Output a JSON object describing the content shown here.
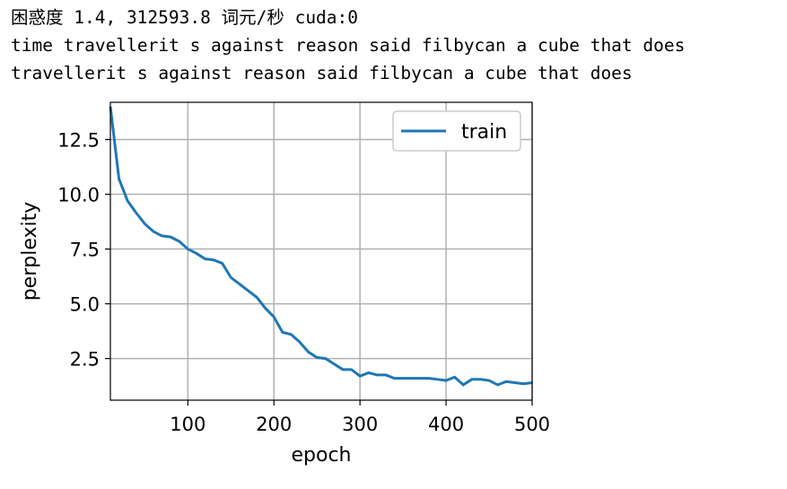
{
  "output": {
    "line1": "困惑度 1.4, 312593.8 词元/秒 cuda:0",
    "line2": "time travellerit s against reason said filbycan a cube that does",
    "line3": "travellerit s against reason said filbycan a cube that does"
  },
  "chart_data": {
    "type": "line",
    "xlabel": "epoch",
    "ylabel": "perplexity",
    "xlim": [
      10,
      500
    ],
    "ylim": [
      0.6,
      14.2
    ],
    "xticks": [
      100,
      200,
      300,
      400,
      500
    ],
    "yticks": [
      2.5,
      5.0,
      7.5,
      10.0,
      12.5
    ],
    "grid": true,
    "legend_position": "top-right",
    "series": [
      {
        "name": "train",
        "color": "#1f77b4",
        "x": [
          10,
          20,
          30,
          40,
          50,
          60,
          70,
          80,
          90,
          100,
          110,
          120,
          130,
          140,
          150,
          160,
          170,
          180,
          190,
          200,
          210,
          220,
          230,
          240,
          250,
          260,
          270,
          280,
          290,
          300,
          310,
          320,
          330,
          340,
          350,
          360,
          370,
          380,
          390,
          400,
          410,
          420,
          430,
          440,
          450,
          460,
          470,
          480,
          490,
          500
        ],
        "y": [
          14.0,
          10.7,
          9.7,
          9.15,
          8.65,
          8.3,
          8.1,
          8.05,
          7.85,
          7.5,
          7.3,
          7.05,
          7.0,
          6.85,
          6.2,
          5.9,
          5.6,
          5.3,
          4.8,
          4.4,
          3.7,
          3.6,
          3.25,
          2.8,
          2.55,
          2.5,
          2.25,
          2.0,
          2.0,
          1.7,
          1.85,
          1.75,
          1.75,
          1.6,
          1.6,
          1.6,
          1.6,
          1.6,
          1.55,
          1.5,
          1.65,
          1.3,
          1.55,
          1.55,
          1.5,
          1.3,
          1.45,
          1.4,
          1.35,
          1.4
        ]
      }
    ]
  }
}
